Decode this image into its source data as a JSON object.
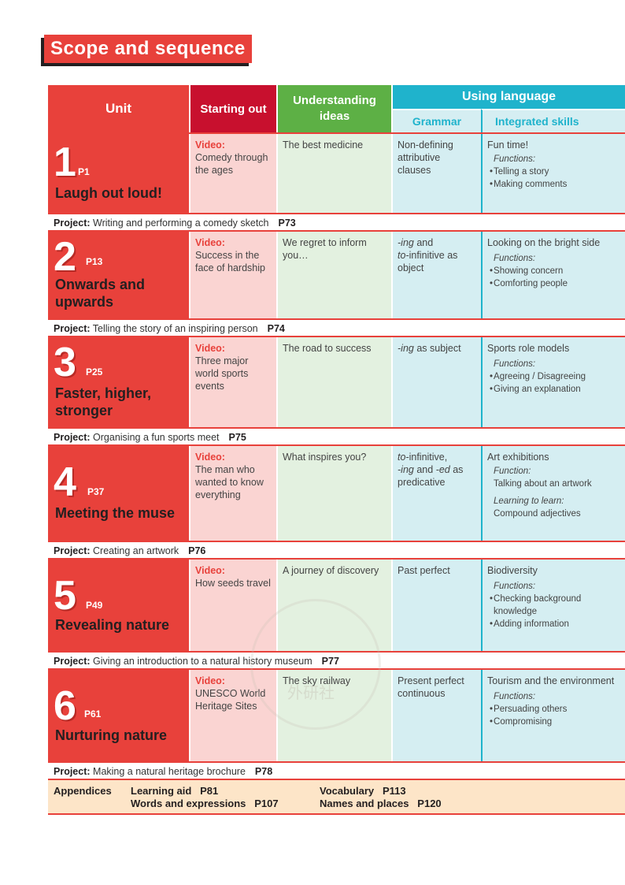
{
  "page_title": "Scope and sequence",
  "headers": {
    "unit": "Unit",
    "starting_out": "Starting out",
    "understanding_ideas": "Understanding ideas",
    "using_language": "Using language",
    "grammar": "Grammar",
    "integrated_skills": "Integrated skills"
  },
  "project_label": "Project:",
  "units": [
    {
      "number": "1",
      "page": "P1",
      "name": "Laugh out loud!",
      "video_label": "Video:",
      "video": "Comedy through the ages",
      "understanding": "The best medicine",
      "grammar": "Non-defining attributive clauses",
      "skills_title": "Fun time!",
      "functions_label": "Functions:",
      "functions": [
        "Telling a story",
        "Making comments"
      ],
      "project": "Writing and performing a comedy sketch",
      "project_page": "P73"
    },
    {
      "number": "2",
      "page": "P13",
      "name": "Onwards and upwards",
      "video_label": "Video:",
      "video": "Success in the face of hardship",
      "understanding": "We regret to inform you…",
      "grammar": "-ing and to-infinitive as object",
      "skills_title": "Looking on the bright side",
      "functions_label": "Functions:",
      "functions": [
        "Showing concern",
        "Comforting people"
      ],
      "project": "Telling the story of an inspiring person",
      "project_page": "P74"
    },
    {
      "number": "3",
      "page": "P25",
      "name": "Faster, higher, stronger",
      "video_label": "Video:",
      "video": "Three major world sports events",
      "understanding": "The road to success",
      "grammar": "-ing as subject",
      "skills_title": "Sports role models",
      "functions_label": "Functions:",
      "functions": [
        "Agreeing / Disagreeing",
        "Giving an explanation"
      ],
      "project": "Organising a fun sports meet",
      "project_page": "P75"
    },
    {
      "number": "4",
      "page": "P37",
      "name": "Meeting the muse",
      "video_label": "Video:",
      "video": "The man who wanted to know everything",
      "understanding": "What inspires you?",
      "grammar": "to-infinitive, -ing and -ed as predicative",
      "skills_title": "Art exhibitions",
      "functions_label": "Function:",
      "function_text": "Talking about an artwork",
      "learning_label": "Learning to learn:",
      "learning_text": "Compound adjectives",
      "project": "Creating an artwork",
      "project_page": "P76"
    },
    {
      "number": "5",
      "page": "P49",
      "name": "Revealing nature",
      "video_label": "Video:",
      "video": "How seeds travel",
      "understanding": "A journey of discovery",
      "grammar": "Past perfect",
      "skills_title": "Biodiversity",
      "functions_label": "Functions:",
      "functions": [
        "Checking background knowledge",
        "Adding information"
      ],
      "project": "Giving an introduction to a natural history museum",
      "project_page": "P77"
    },
    {
      "number": "6",
      "page": "P61",
      "name": "Nurturing nature",
      "video_label": "Video:",
      "video": "UNESCO World Heritage Sites",
      "understanding": "The sky railway",
      "grammar": "Present perfect continuous",
      "skills_title": "Tourism and the environment",
      "functions_label": "Functions:",
      "functions": [
        "Persuading others",
        "Compromising"
      ],
      "project": "Making a natural heritage brochure",
      "project_page": "P78"
    }
  ],
  "appendices": {
    "label": "Appendices",
    "items": [
      {
        "name": "Learning aid",
        "page": "P81"
      },
      {
        "name": "Vocabulary",
        "page": "P113"
      },
      {
        "name": "Words and expressions",
        "page": "P107"
      },
      {
        "name": "Names and places",
        "page": "P120"
      }
    ]
  },
  "watermark_text": "外研社",
  "colors": {
    "unit_red": "#e8413b",
    "starting_red": "#c8102e",
    "understanding_green": "#5db045",
    "using_blue": "#1fb3cc",
    "light_blue": "#d5eef2",
    "light_pink": "#fad4d2",
    "light_green": "#e3f1e0",
    "appendix_peach": "#fde5c8"
  }
}
